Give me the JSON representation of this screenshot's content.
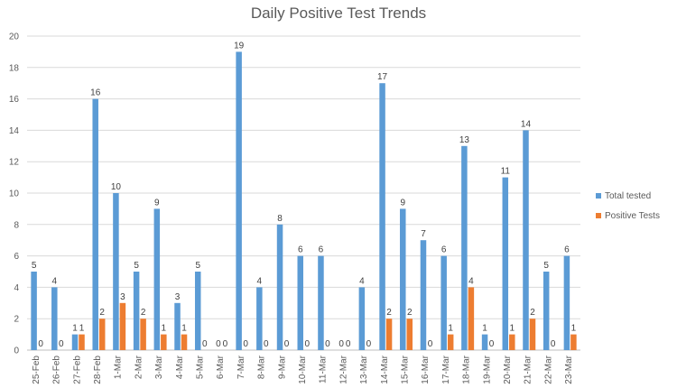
{
  "chart_data": {
    "type": "bar",
    "title": "Daily Positive Test Trends",
    "xlabel": "",
    "ylabel": "",
    "ylim": [
      0,
      20
    ],
    "yticks": [
      0,
      2,
      4,
      6,
      8,
      10,
      12,
      14,
      16,
      18,
      20
    ],
    "grid": true,
    "legend_position": "right",
    "categories": [
      "25-Feb",
      "26-Feb",
      "27-Feb",
      "28-Feb",
      "1-Mar",
      "2-Mar",
      "3-Mar",
      "4-Mar",
      "5-Mar",
      "6-Mar",
      "7-Mar",
      "8-Mar",
      "9-Mar",
      "10-Mar",
      "11-Mar",
      "12-Mar",
      "13-Mar",
      "14-Mar",
      "15-Mar",
      "16-Mar",
      "17-Mar",
      "18-Mar",
      "19-Mar",
      "20-Mar",
      "21-Mar",
      "22-Mar",
      "23-Mar"
    ],
    "series": [
      {
        "name": "Total tested",
        "color": "#5B9BD5",
        "values": [
          5,
          4,
          1,
          16,
          10,
          5,
          9,
          3,
          5,
          0,
          19,
          4,
          8,
          6,
          6,
          0,
          4,
          17,
          9,
          7,
          6,
          13,
          1,
          11,
          14,
          5,
          6
        ]
      },
      {
        "name": "Positive Tests",
        "color": "#ED7D31",
        "values": [
          0,
          0,
          1,
          2,
          3,
          2,
          1,
          1,
          0,
          0,
          0,
          0,
          0,
          0,
          0,
          0,
          0,
          2,
          2,
          0,
          1,
          4,
          0,
          1,
          2,
          0,
          1
        ]
      }
    ]
  }
}
